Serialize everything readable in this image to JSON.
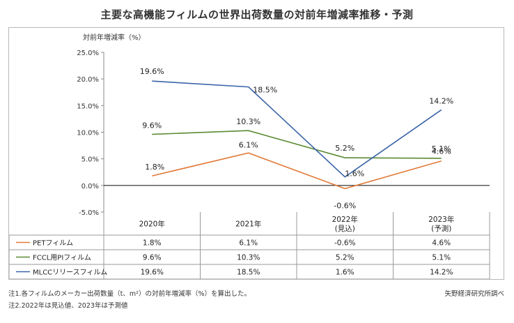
{
  "title": "主要な高機能フィルムの世界出荷数量の対前年増減率推移・予測",
  "footnotes": [
    "注1.各フィルムのメーカー出荷数量（t、m²）の対前年増減率（%）を算出した。",
    "注2.2022年は見込値、2023年は予測値"
  ],
  "source": "矢野経済研究所調べ",
  "chart_data": {
    "type": "line",
    "ylabel": "対前年増減率（%）",
    "ylim": [
      -5,
      25
    ],
    "yticks": [
      -5,
      0,
      5,
      10,
      15,
      20,
      25
    ],
    "ytick_labels": [
      "-5.0%",
      "0.0%",
      "5.0%",
      "10.0%",
      "15.0%",
      "20.0%",
      "25.0%"
    ],
    "categories": [
      "2020年",
      "2021年",
      "2022年\n(見込)",
      "2023年\n(予測)"
    ],
    "series": [
      {
        "name": "PETフィルム",
        "color": "#e07a38",
        "values": [
          1.8,
          6.1,
          -0.6,
          4.6
        ],
        "labels": [
          "1.8%",
          "6.1%",
          "-0.6%",
          "4.6%"
        ]
      },
      {
        "name": "FCCL用PIフィルム",
        "color": "#5a8a32",
        "values": [
          9.6,
          10.3,
          5.2,
          5.1
        ],
        "labels": [
          "9.6%",
          "10.3%",
          "5.2%",
          "5.1%"
        ]
      },
      {
        "name": "MLCCリリースフィルム",
        "color": "#3a64a8",
        "values": [
          19.6,
          18.5,
          1.6,
          14.2
        ],
        "labels": [
          "19.6%",
          "18.5%",
          "1.6%",
          "14.2%"
        ]
      }
    ],
    "grid": false,
    "data_table": true
  }
}
